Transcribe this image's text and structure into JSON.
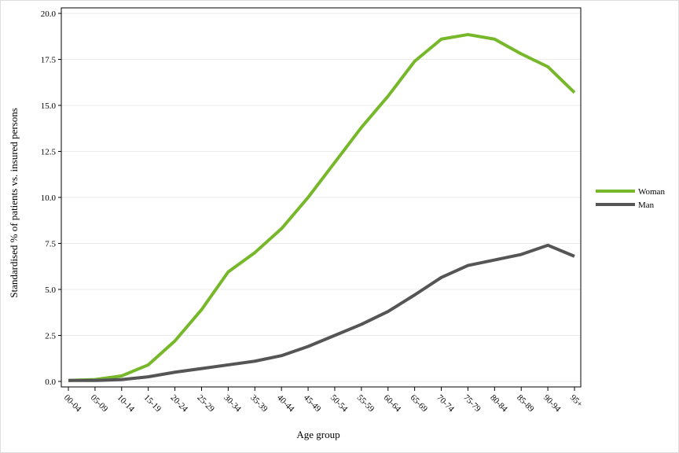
{
  "chart_data": {
    "type": "line",
    "y_label": "Standardised % of patients vs. insured persons",
    "x_label": "Age group",
    "categories": [
      "00-04",
      "05-09",
      "10-14",
      "15-19",
      "20-24",
      "25-29",
      "30-34",
      "35-39",
      "40-44",
      "45-49",
      "50-54",
      "55-59",
      "60-64",
      "65-69",
      "70-74",
      "75-79",
      "80-84",
      "85-89",
      "90-94",
      "95+"
    ],
    "series": [
      {
        "name": "Woman",
        "color": "#76b82a",
        "values": [
          0.05,
          0.1,
          0.3,
          0.9,
          2.2,
          3.9,
          5.95,
          7.0,
          8.3,
          10.0,
          11.9,
          13.8,
          15.5,
          17.4,
          18.6,
          18.85,
          18.6,
          17.8,
          17.1,
          15.7
        ]
      },
      {
        "name": "Man",
        "color": "#555555",
        "values": [
          0.05,
          0.05,
          0.1,
          0.25,
          0.5,
          0.7,
          0.9,
          1.1,
          1.4,
          1.9,
          2.5,
          3.1,
          3.8,
          4.7,
          5.65,
          6.3,
          6.6,
          6.9,
          7.4,
          6.8
        ]
      }
    ],
    "ylim": [
      -0.3,
      20.3
    ],
    "yticks": [
      {
        "value": 0,
        "label": "0.0"
      },
      2.5,
      {
        "value": 5,
        "label": "5.0"
      },
      7.5,
      {
        "value": 10,
        "label": "10.0"
      },
      12.5,
      {
        "value": 15,
        "label": "15.0"
      },
      17.5,
      {
        "value": 20,
        "label": "20.0"
      }
    ],
    "grid": true,
    "legend": "right"
  }
}
